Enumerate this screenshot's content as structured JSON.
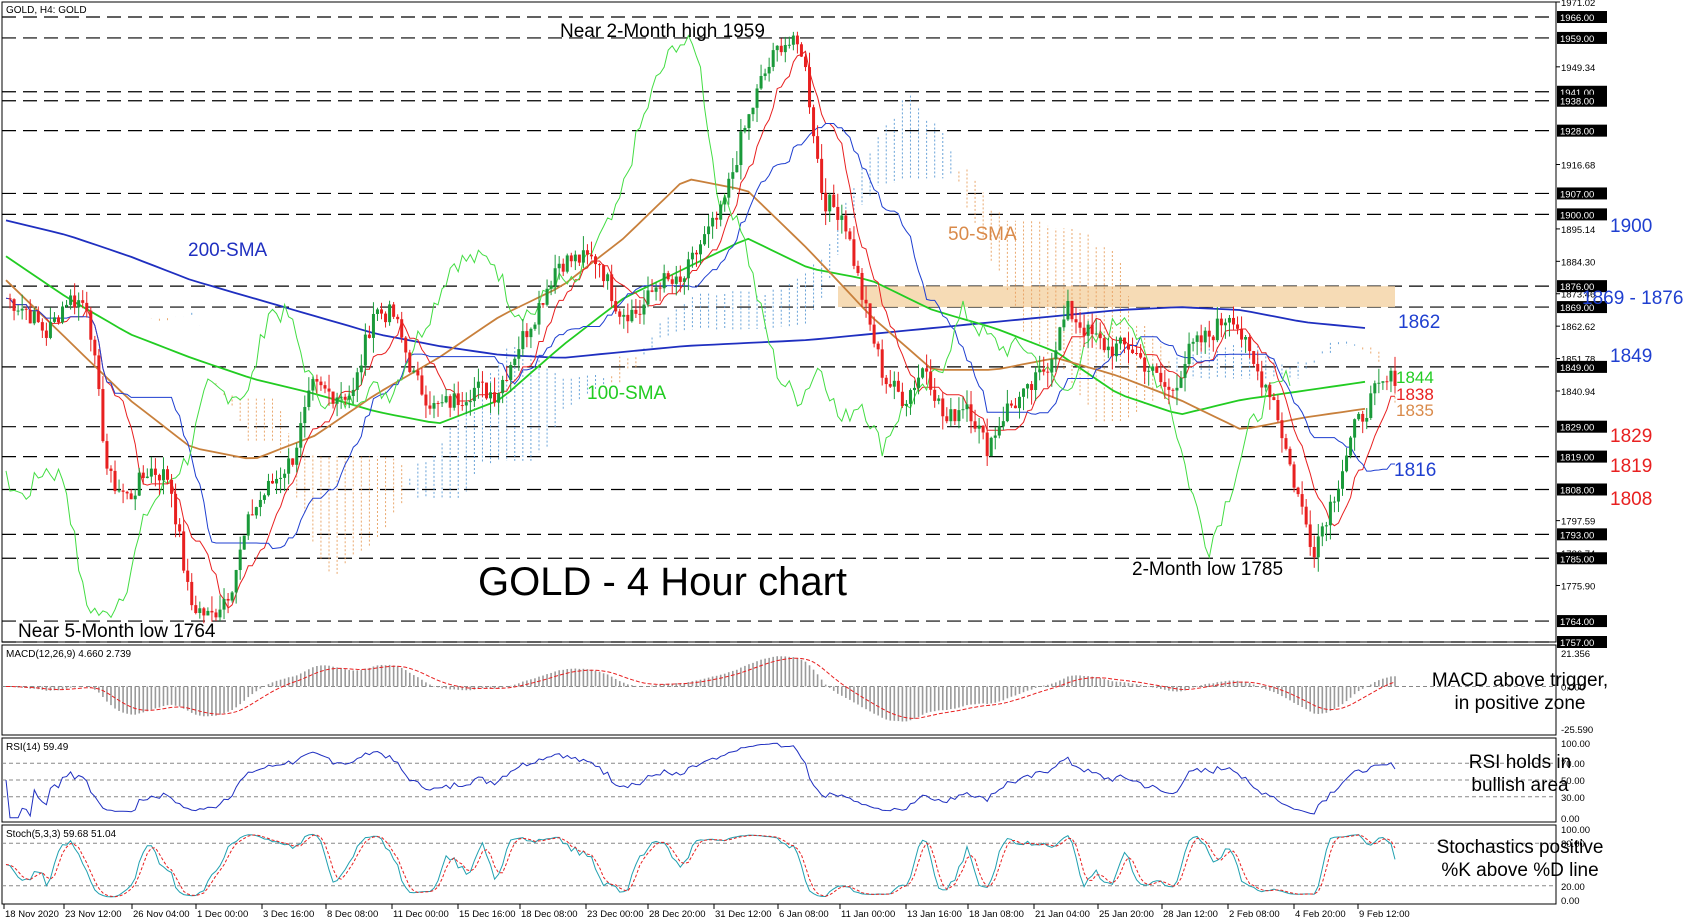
{
  "header": {
    "symbol_label": "GOLD, H4:  GOLD"
  },
  "main_chart": {
    "title": "GOLD - 4 Hour chart",
    "price_axis_ticks": [
      "1971.02",
      "1949.34",
      "1916.68",
      "1895.14",
      "1884.30",
      "1873.46",
      "1862.62",
      "1851.78",
      "1840.94",
      "1797.59",
      "1786.74",
      "1775.90"
    ],
    "level_lines": [
      {
        "value": 1966.0,
        "label": "1966.00"
      },
      {
        "value": 1959.0,
        "label": "1959.00"
      },
      {
        "value": 1941.0,
        "label": "1941.00"
      },
      {
        "value": 1938.0,
        "label": "1938.00"
      },
      {
        "value": 1928.0,
        "label": "1928.00"
      },
      {
        "value": 1907.0,
        "label": "1907.00"
      },
      {
        "value": 1900.0,
        "label": "1900.00"
      },
      {
        "value": 1876.0,
        "label": "1876.00"
      },
      {
        "value": 1869.0,
        "label": "1869.00"
      },
      {
        "value": 1849.0,
        "label": "1849.00"
      },
      {
        "value": 1829.0,
        "label": "1829.00"
      },
      {
        "value": 1819.0,
        "label": "1819.00"
      },
      {
        "value": 1808.0,
        "label": "1808.00"
      },
      {
        "value": 1793.0,
        "label": "1793.00"
      },
      {
        "value": 1785.0,
        "label": "1785.00"
      },
      {
        "value": 1764.0,
        "label": "1764.00"
      },
      {
        "value": 1757.0,
        "label": "1757.00"
      }
    ],
    "annotations": {
      "high": "Near 2-Month high 1959",
      "low5": "Near 5-Month low 1764",
      "low2": "2-Month low 1785",
      "sma200": "200-SMA",
      "sma100": "100-SMA",
      "sma50": "50-SMA"
    },
    "right_labels": [
      {
        "text": "1900",
        "color": "#1f3fd0"
      },
      {
        "text": "1869 - 1876",
        "color": "#1f3fd0"
      },
      {
        "text": "1862",
        "color": "#1f3fd0"
      },
      {
        "text": "1849",
        "color": "#1f3fd0"
      },
      {
        "text": "1844",
        "color": "#22cc22"
      },
      {
        "text": "1838",
        "color": "#e82020"
      },
      {
        "text": "1835",
        "color": "#d98a4a"
      },
      {
        "text": "1829",
        "color": "#e82020"
      },
      {
        "text": "1819",
        "color": "#e82020"
      },
      {
        "text": "1816",
        "color": "#1f3fd0"
      },
      {
        "text": "1808",
        "color": "#e82020"
      }
    ]
  },
  "macd": {
    "header": "MACD(12,26,9) 4.660 2.739",
    "ticks": [
      "21.356",
      "0.000",
      "-25.590"
    ],
    "comment_line1": "MACD above trigger,",
    "comment_line2": "in positive zone"
  },
  "rsi": {
    "header": "RSI(14) 59.49",
    "ticks": [
      "100.00",
      "70.00",
      "50.00",
      "30.00",
      "0.00"
    ],
    "comment_line1": "RSI holds in",
    "comment_line2": "bullish area"
  },
  "stoch": {
    "header": "Stoch(5,3,3) 59.68 51.04",
    "ticks": [
      "100.00",
      "80.00",
      "20.00",
      "0.00"
    ],
    "comment_line1": "Stochastics positive",
    "comment_line2": "%K above %D line"
  },
  "time_axis": [
    "18 Nov 2020",
    "23 Nov 12:00",
    "26 Nov 04:00",
    "1 Dec 00:00",
    "3 Dec 16:00",
    "8 Dec 08:00",
    "11 Dec 00:00",
    "15 Dec 16:00",
    "18 Dec 08:00",
    "23 Dec 00:00",
    "28 Dec 20:00",
    "31 Dec 12:00",
    "6 Jan 08:00",
    "11 Jan 00:00",
    "13 Jan 16:00",
    "18 Jan 08:00",
    "21 Jan 04:00",
    "25 Jan 20:00",
    "28 Jan 12:00",
    "2 Feb 08:00",
    "4 Feb 20:00",
    "9 Feb 12:00"
  ],
  "colors": {
    "candle_up": "#1a9a3a",
    "candle_down": "#e82020",
    "sma200": "#1f2fc0",
    "sma100": "#22cc22",
    "sma50": "#c8803c",
    "tenkan": "#e82020",
    "kijun": "#1f3fd0",
    "chikou": "#44dd44",
    "cloud_bull": "#5b9bd5",
    "cloud_bear": "#e8a060",
    "zone": "#f5d5a8"
  },
  "chart_data": {
    "type": "candlestick",
    "title": "GOLD - 4 Hour chart",
    "symbol": "GOLD",
    "timeframe": "H4",
    "price_range": [
      1757,
      1971.02
    ],
    "x_labels": [
      "18 Nov 2020",
      "23 Nov 12:00",
      "26 Nov 04:00",
      "1 Dec 00:00",
      "3 Dec 16:00",
      "8 Dec 08:00",
      "11 Dec 00:00",
      "15 Dec 16:00",
      "18 Dec 08:00",
      "23 Dec 00:00",
      "28 Dec 20:00",
      "31 Dec 12:00",
      "6 Jan 08:00",
      "11 Jan 00:00",
      "13 Jan 16:00",
      "18 Jan 08:00",
      "21 Jan 04:00",
      "25 Jan 20:00",
      "28 Jan 12:00",
      "2 Feb 08:00",
      "4 Feb 20:00",
      "9 Feb 12:00"
    ],
    "price_path": [
      1872,
      1868,
      1860,
      1872,
      1870,
      1812,
      1805,
      1815,
      1812,
      1770,
      1765,
      1775,
      1800,
      1810,
      1818,
      1842,
      1840,
      1840,
      1868,
      1866,
      1845,
      1835,
      1838,
      1842,
      1840,
      1855,
      1868,
      1884,
      1885,
      1885,
      1868,
      1867,
      1878,
      1876,
      1890,
      1900,
      1925,
      1945,
      1958,
      1955,
      1905,
      1900,
      1870,
      1845,
      1838,
      1850,
      1830,
      1838,
      1822,
      1835,
      1840,
      1850,
      1868,
      1860,
      1855,
      1856,
      1848,
      1840,
      1855,
      1860,
      1868,
      1850,
      1840,
      1812,
      1788,
      1806,
      1828,
      1840,
      1846
    ],
    "series": [
      {
        "name": "200-SMA",
        "values": [
          1898,
          1893,
          1886,
          1878,
          1872,
          1866,
          1860,
          1856,
          1853,
          1852,
          1854,
          1856,
          1857,
          1858,
          1860,
          1862,
          1864,
          1866,
          1868,
          1869,
          1868,
          1864,
          1862
        ]
      },
      {
        "name": "100-SMA",
        "values": [
          1886,
          1872,
          1860,
          1852,
          1845,
          1840,
          1834,
          1830,
          1838,
          1856,
          1872,
          1882,
          1892,
          1882,
          1878,
          1868,
          1862,
          1854,
          1840,
          1833,
          1838,
          1841,
          1844
        ]
      },
      {
        "name": "50-SMA",
        "values": [
          1878,
          1858,
          1838,
          1822,
          1818,
          1826,
          1840,
          1852,
          1866,
          1876,
          1892,
          1912,
          1908,
          1888,
          1866,
          1848,
          1848,
          1852,
          1846,
          1838,
          1828,
          1832,
          1835
        ]
      }
    ],
    "macd": {
      "name": "MACD(12,26,9)",
      "main": 4.66,
      "signal": 2.739,
      "range": [
        -25.59,
        21.356
      ]
    },
    "rsi": {
      "name": "RSI(14)",
      "value": 59.49,
      "levels": [
        30,
        50,
        70
      ]
    },
    "stochastic": {
      "name": "Stoch(5,3,3)",
      "k": 59.68,
      "d": 51.04,
      "levels": [
        20,
        80
      ]
    }
  }
}
